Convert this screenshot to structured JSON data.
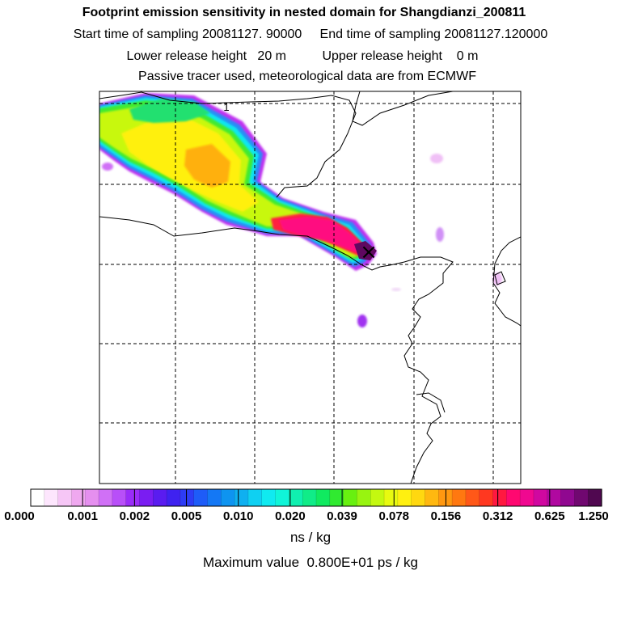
{
  "chart_data": {
    "type": "heatmap",
    "title": "Footprint emission sensitivity in nested domain for Shangdianzi_200811",
    "subtitles": [
      "Start time of sampling 20081127. 90000     End time of sampling 20081127.120000",
      "Lower release height   20 m          Upper release height    0 m",
      "Passive tracer used, meteorological data are from ECMWF"
    ],
    "colorbar": {
      "tick_labels": [
        "0.000",
        "0.001",
        "0.002",
        "0.005",
        "0.010",
        "0.020",
        "0.039",
        "0.078",
        "0.156",
        "0.312",
        "0.625",
        "1.250"
      ],
      "unit": "ns / kg",
      "colors": [
        "#ffffff",
        "#fde6fd",
        "#f6c6f6",
        "#efa8ef",
        "#e58fef",
        "#d070f6",
        "#b84ff8",
        "#9a2cf8",
        "#7a1df2",
        "#5a1cf0",
        "#3f22f0",
        "#2d3cf5",
        "#1e5cf8",
        "#1478f5",
        "#0e94f0",
        "#0fb0f0",
        "#0fd0f2",
        "#10eaf0",
        "#10f5d8",
        "#10f0b0",
        "#10ec88",
        "#10ea60",
        "#30ea30",
        "#68f010",
        "#98f410",
        "#c4f810",
        "#e8fa10",
        "#fff010",
        "#ffd810",
        "#ffb810",
        "#ff9810",
        "#ff7810",
        "#ff5818",
        "#ff3820",
        "#ff1840",
        "#ff0870",
        "#f00890",
        "#d008a0",
        "#b008a0",
        "#900890",
        "#700870",
        "#500850"
      ]
    },
    "max_value_label": "Maximum value  0.800E+01 ps / kg",
    "receptor_label": "1",
    "receptor_marker": "×"
  }
}
